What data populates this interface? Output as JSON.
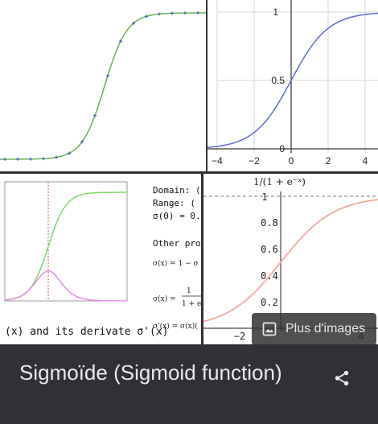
{
  "tiles": {
    "tile2_axis": {
      "x_ticks": [
        "−4",
        "−2",
        "0",
        "2",
        "4"
      ],
      "y_ticks": [
        "1",
        "0.5",
        "0"
      ]
    },
    "tile3_text": {
      "caption_left": "(x) and its derivate σ'(x)",
      "domain": "Domain: (",
      "range": "Range: (",
      "sigma0": "σ(0) = 0.",
      "other": "Other prop",
      "f1": "σ(x) = 1 − σ",
      "f2_num": "1",
      "f2_den": "1 + e",
      "f2_lhs": "σ(x) =",
      "f3": "σ'(x) = σ(x)("
    },
    "tile4_axis": {
      "title": "1/(1 + e⁻ˣ)",
      "y_ticks": [
        "1",
        "0.8",
        "0.6",
        "0.4",
        "0.2"
      ],
      "x_ticks": [
        "−2",
        "4"
      ]
    }
  },
  "more_images": {
    "label": "Plus d'images",
    "icon": "image-icon"
  },
  "caption": {
    "title": "Sigmoïde (Sigmoid function)",
    "share_icon": "share-icon"
  },
  "colors": {
    "dark_bg": "#303134",
    "text": "#e8eaed",
    "blue_curve": "#5c6bd6",
    "green_curve": "#7bd96a",
    "magenta_curve": "#e58be8",
    "red_curve": "#f4a7a0"
  }
}
